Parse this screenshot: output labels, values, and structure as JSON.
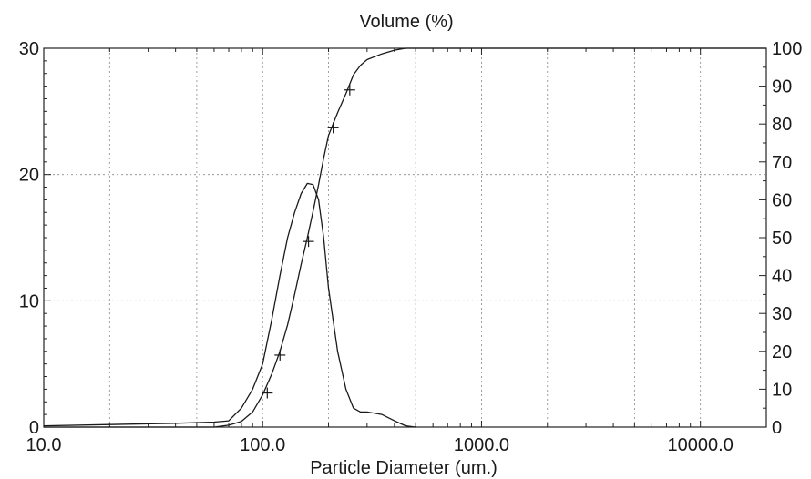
{
  "chart_data": {
    "type": "line",
    "title": "Volume (%)",
    "xlabel": "Particle Diameter (um.)",
    "ylabel": "",
    "y2label": "",
    "x_scale": "log",
    "xlim": [
      10,
      20000
    ],
    "ylim": [
      0,
      30
    ],
    "y2lim": [
      0,
      100
    ],
    "grid": true,
    "x_tick_labels": [
      "10.0",
      "100.0",
      "1000.0",
      "10000.0"
    ],
    "x_tick_values": [
      10,
      100,
      1000,
      10000
    ],
    "y_tick_labels": [
      "0",
      "10",
      "20",
      "30"
    ],
    "y_tick_values": [
      0,
      10,
      20,
      30
    ],
    "y2_tick_labels": [
      "0",
      "10",
      "20",
      "30",
      "40",
      "50",
      "60",
      "70",
      "80",
      "90",
      "100"
    ],
    "y2_tick_values": [
      0,
      10,
      20,
      30,
      40,
      50,
      60,
      70,
      80,
      90,
      100
    ],
    "series": [
      {
        "axis": "left",
        "x": [
          10,
          20,
          40,
          60,
          70,
          80,
          90,
          100,
          110,
          120,
          130,
          140,
          150,
          160,
          170,
          180,
          190,
          200,
          220,
          240,
          260,
          280,
          300,
          350,
          400,
          450,
          500
        ],
        "y": [
          0.1,
          0.2,
          0.3,
          0.4,
          0.5,
          1.5,
          3.0,
          5.0,
          8.5,
          12.0,
          15.0,
          17.0,
          18.5,
          19.3,
          19.2,
          18.0,
          15.0,
          11.0,
          6.0,
          3.0,
          1.5,
          1.2,
          1.2,
          1.0,
          0.5,
          0.1,
          0.0
        ]
      },
      {
        "axis": "right",
        "x": [
          10,
          40,
          60,
          70,
          80,
          90,
          100,
          110,
          120,
          130,
          140,
          150,
          160,
          170,
          180,
          190,
          200,
          220,
          240,
          260,
          280,
          300,
          350,
          400,
          450,
          500,
          20000
        ],
        "y": [
          0,
          0,
          0,
          0.5,
          1.5,
          4.0,
          8.5,
          14.0,
          20.0,
          27.0,
          35.0,
          43.0,
          50.0,
          57.0,
          64.0,
          71.0,
          77.0,
          83.0,
          88.0,
          93.0,
          95.5,
          97.0,
          98.5,
          99.5,
          100,
          100,
          100
        ],
        "markers_x": [
          105,
          120,
          162,
          210,
          250
        ],
        "markers_y": [
          9,
          19,
          49,
          79,
          89
        ]
      }
    ]
  }
}
